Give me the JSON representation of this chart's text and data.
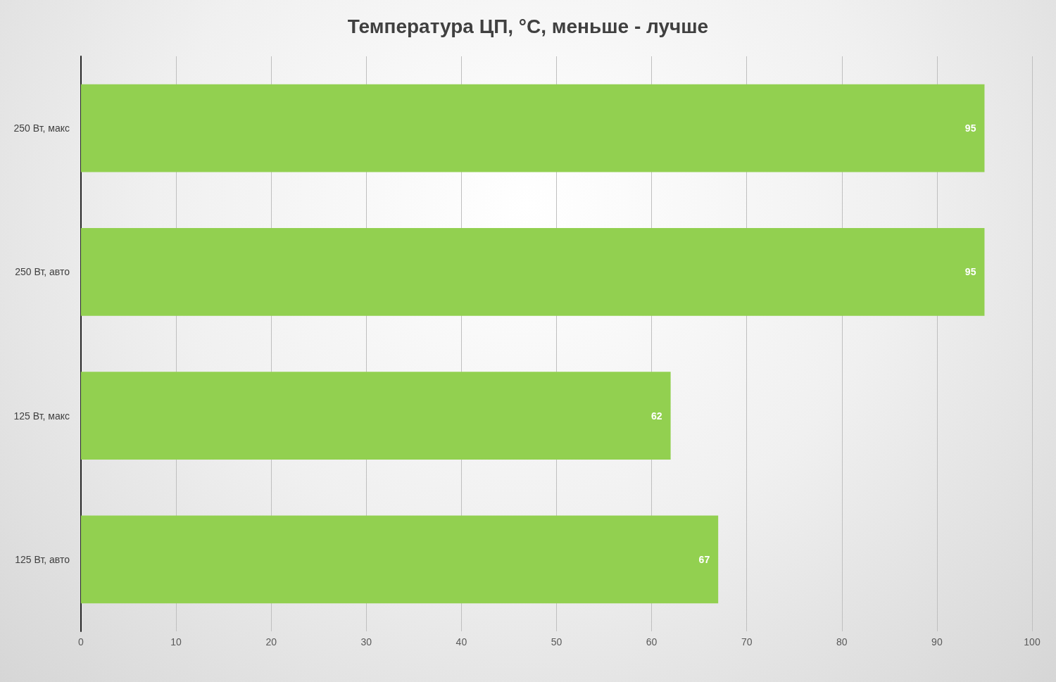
{
  "chart_data": {
    "type": "bar",
    "orientation": "horizontal",
    "title": "Температура ЦП, °C, меньше - лучше",
    "categories": [
      "250 Вт, макс",
      "250 Вт, авто",
      "125 Вт, макс",
      "125 Вт, авто"
    ],
    "values": [
      95,
      95,
      62,
      67
    ],
    "color": "#92d050",
    "xlim": [
      0,
      100
    ],
    "xticks": [
      0,
      10,
      20,
      30,
      40,
      50,
      60,
      70,
      80,
      90,
      100
    ],
    "grid": "x",
    "data_labels": true
  }
}
